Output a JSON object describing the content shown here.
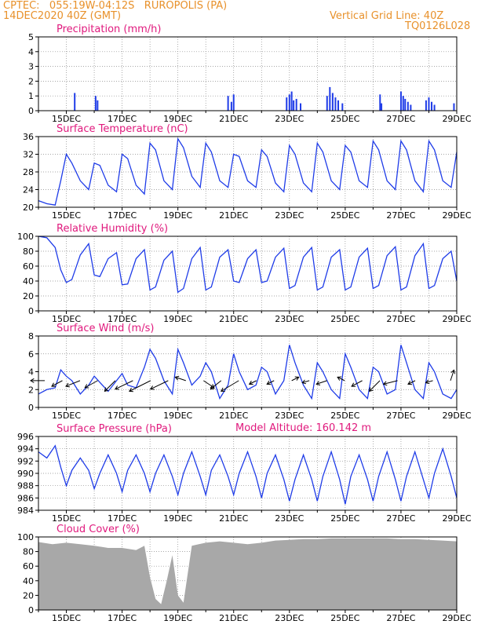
{
  "header": {
    "location_line": "CPTEC:   055:19W-04:12S   RUROPOLIS (PA)",
    "date_line": "14DEC2020 40Z (GMT)",
    "grid_line": "Vertical Grid Line: 40Z",
    "code": "TQ0126L028"
  },
  "colors": {
    "header": "#e8912b",
    "title": "#e0197d",
    "line": "#1f3ce8",
    "bar": "#1f3ce8",
    "cloud": "#a8a8a8",
    "axis": "#000000"
  },
  "x_tick_labels": [
    "15DEC",
    "17DEC",
    "19DEC",
    "21DEC",
    "23DEC",
    "25DEC",
    "27DEC",
    "29DEC"
  ],
  "model_altitude": "Model Altitude: 160.142 m",
  "chart_data": [
    {
      "type": "bar",
      "title": "Precipitation (mm/h)",
      "x_range_days": [
        14.0,
        29.0
      ],
      "ylim": [
        0,
        5
      ],
      "y_ticks": [
        0,
        1,
        2,
        3,
        4,
        5
      ],
      "grid": true,
      "x": [
        15.3,
        16.05,
        16.12,
        20.8,
        20.92,
        21.0,
        22.9,
        23.0,
        23.08,
        23.15,
        23.25,
        23.4,
        24.35,
        24.45,
        24.55,
        24.65,
        24.75,
        24.9,
        26.25,
        26.3,
        27.0,
        27.08,
        27.15,
        27.25,
        27.35,
        27.9,
        28.0,
        28.1,
        28.2,
        28.9
      ],
      "values": [
        1.2,
        1.0,
        0.7,
        1.0,
        0.6,
        1.1,
        0.9,
        1.1,
        1.3,
        0.7,
        0.8,
        0.5,
        1.0,
        1.6,
        1.2,
        0.9,
        0.7,
        0.5,
        1.1,
        0.5,
        1.3,
        1.0,
        0.8,
        0.6,
        0.4,
        0.7,
        0.9,
        0.6,
        0.4,
        0.5
      ]
    },
    {
      "type": "line",
      "title": "Surface Temperature (nC)",
      "x_range_days": [
        14.0,
        29.0
      ],
      "ylim": [
        20,
        36
      ],
      "y_ticks": [
        20,
        24,
        28,
        32,
        36
      ],
      "grid": true,
      "x": [
        14.0,
        14.3,
        14.6,
        14.8,
        15.0,
        15.2,
        15.5,
        15.8,
        16.0,
        16.2,
        16.5,
        16.8,
        17.0,
        17.2,
        17.5,
        17.8,
        18.0,
        18.2,
        18.5,
        18.8,
        19.0,
        19.2,
        19.5,
        19.8,
        20.0,
        20.2,
        20.5,
        20.8,
        21.0,
        21.2,
        21.5,
        21.8,
        22.0,
        22.2,
        22.5,
        22.8,
        23.0,
        23.2,
        23.5,
        23.8,
        24.0,
        24.2,
        24.5,
        24.8,
        25.0,
        25.2,
        25.5,
        25.8,
        26.0,
        26.2,
        26.5,
        26.8,
        27.0,
        27.2,
        27.5,
        27.8,
        28.0,
        28.2,
        28.5,
        28.8,
        29.0
      ],
      "values": [
        21.5,
        20.8,
        20.5,
        26.0,
        32.0,
        30.0,
        26.0,
        24.0,
        30.0,
        29.5,
        25.0,
        23.5,
        32.0,
        31.0,
        25.0,
        23.0,
        34.5,
        33.0,
        26.0,
        24.0,
        35.5,
        33.5,
        27.0,
        24.5,
        34.5,
        32.5,
        26.0,
        24.5,
        32.0,
        31.5,
        26.0,
        24.5,
        33.0,
        31.5,
        25.5,
        23.5,
        34.0,
        32.0,
        25.5,
        23.5,
        34.5,
        32.5,
        26.0,
        24.0,
        34.0,
        32.5,
        26.0,
        24.5,
        35.0,
        33.0,
        26.0,
        24.0,
        35.0,
        33.0,
        26.0,
        23.5,
        35.0,
        33.0,
        26.0,
        24.5,
        32.5
      ]
    },
    {
      "type": "line",
      "title": "Relative Humidity (%)",
      "x_range_days": [
        14.0,
        29.0
      ],
      "ylim": [
        0,
        100
      ],
      "y_ticks": [
        0,
        20,
        40,
        60,
        80,
        100
      ],
      "grid": true,
      "x": [
        14.0,
        14.3,
        14.6,
        14.8,
        15.0,
        15.2,
        15.5,
        15.8,
        16.0,
        16.2,
        16.5,
        16.8,
        17.0,
        17.2,
        17.5,
        17.8,
        18.0,
        18.2,
        18.5,
        18.8,
        19.0,
        19.2,
        19.5,
        19.8,
        20.0,
        20.2,
        20.5,
        20.8,
        21.0,
        21.2,
        21.5,
        21.8,
        22.0,
        22.2,
        22.5,
        22.8,
        23.0,
        23.2,
        23.5,
        23.8,
        24.0,
        24.2,
        24.5,
        24.8,
        25.0,
        25.2,
        25.5,
        25.8,
        26.0,
        26.2,
        26.5,
        26.8,
        27.0,
        27.2,
        27.5,
        27.8,
        28.0,
        28.2,
        28.5,
        28.8,
        29.0
      ],
      "values": [
        100,
        98,
        85,
        55,
        38,
        42,
        75,
        90,
        48,
        46,
        70,
        78,
        35,
        36,
        70,
        82,
        28,
        32,
        68,
        80,
        25,
        30,
        70,
        85,
        28,
        32,
        72,
        82,
        40,
        38,
        70,
        82,
        38,
        40,
        72,
        84,
        30,
        34,
        72,
        85,
        28,
        32,
        72,
        82,
        28,
        32,
        72,
        84,
        30,
        34,
        74,
        86,
        28,
        32,
        74,
        90,
        30,
        34,
        70,
        80,
        40
      ]
    },
    {
      "type": "line",
      "title": "Surface Wind (m/s)",
      "x_range_days": [
        14.0,
        29.0
      ],
      "ylim": [
        0,
        8
      ],
      "y_ticks": [
        0,
        2,
        4,
        6,
        8
      ],
      "grid": true,
      "x": [
        14.0,
        14.3,
        14.6,
        14.8,
        15.0,
        15.2,
        15.5,
        15.8,
        16.0,
        16.2,
        16.5,
        16.8,
        17.0,
        17.2,
        17.5,
        17.8,
        18.0,
        18.2,
        18.5,
        18.8,
        19.0,
        19.2,
        19.5,
        19.8,
        20.0,
        20.2,
        20.5,
        20.8,
        21.0,
        21.2,
        21.5,
        21.8,
        22.0,
        22.2,
        22.5,
        22.8,
        23.0,
        23.2,
        23.5,
        23.8,
        24.0,
        24.2,
        24.5,
        24.8,
        25.0,
        25.2,
        25.5,
        25.8,
        26.0,
        26.2,
        26.5,
        26.8,
        27.0,
        27.2,
        27.5,
        27.8,
        28.0,
        28.2,
        28.5,
        28.8,
        29.0
      ],
      "values": [
        1.5,
        2.0,
        2.2,
        4.2,
        3.5,
        3.0,
        1.5,
        2.5,
        3.5,
        2.8,
        1.8,
        3.0,
        3.8,
        2.5,
        2.2,
        4.5,
        6.5,
        5.5,
        3.0,
        1.5,
        6.5,
        5.0,
        2.5,
        3.5,
        5.0,
        4.0,
        1.0,
        2.5,
        6.0,
        4.0,
        2.0,
        2.5,
        4.5,
        4.0,
        1.5,
        3.0,
        7.0,
        5.0,
        2.5,
        1.0,
        5.0,
        4.0,
        2.0,
        1.0,
        6.0,
        4.5,
        2.0,
        1.0,
        4.5,
        4.0,
        1.5,
        2.0,
        7.0,
        5.0,
        2.0,
        1.0,
        5.0,
        4.0,
        1.5,
        1.0,
        2.0
      ],
      "arrows_u": [
        -2.0,
        -1.5,
        -2.0,
        -1.8,
        -1.5,
        -2.5,
        -3.0,
        -2.5,
        -1.5,
        1.5,
        -1.5,
        -2.5,
        -1.0,
        -1.0,
        1.0,
        -1.0,
        -1.5,
        -1.0,
        -1.5,
        -1.5,
        -2.0,
        -1.0,
        -1.0,
        0.5
      ],
      "arrows_v": [
        0.0,
        -0.8,
        -0.8,
        -1.0,
        -1.5,
        -1.2,
        -1.5,
        -1.2,
        0.5,
        -1.0,
        -1.2,
        -1.5,
        -0.5,
        -0.5,
        0.5,
        -0.3,
        -0.5,
        0.5,
        -0.8,
        -1.5,
        -0.5,
        -0.5,
        -0.3,
        1.5
      ]
    },
    {
      "type": "line",
      "title": "Surface Pressure (hPa)",
      "x_range_days": [
        14.0,
        29.0
      ],
      "ylim": [
        984,
        996
      ],
      "y_ticks": [
        984,
        986,
        988,
        990,
        992,
        994,
        996
      ],
      "grid": true,
      "x": [
        14.0,
        14.3,
        14.6,
        14.8,
        15.0,
        15.2,
        15.5,
        15.8,
        16.0,
        16.2,
        16.5,
        16.8,
        17.0,
        17.2,
        17.5,
        17.8,
        18.0,
        18.2,
        18.5,
        18.8,
        19.0,
        19.2,
        19.5,
        19.8,
        20.0,
        20.2,
        20.5,
        20.8,
        21.0,
        21.2,
        21.5,
        21.8,
        22.0,
        22.2,
        22.5,
        22.8,
        23.0,
        23.2,
        23.5,
        23.8,
        24.0,
        24.2,
        24.5,
        24.8,
        25.0,
        25.2,
        25.5,
        25.8,
        26.0,
        26.2,
        26.5,
        26.8,
        27.0,
        27.2,
        27.5,
        27.8,
        28.0,
        28.2,
        28.5,
        28.8,
        29.0
      ],
      "values": [
        993.5,
        992.5,
        994.5,
        991.0,
        988.0,
        990.5,
        992.5,
        990.5,
        987.5,
        990.0,
        993.0,
        990.0,
        987.0,
        990.5,
        993.0,
        990.0,
        987.0,
        990.0,
        993.0,
        989.5,
        986.5,
        990.0,
        993.5,
        989.5,
        986.5,
        990.5,
        993.0,
        989.5,
        986.5,
        990.0,
        993.5,
        989.5,
        986.0,
        990.0,
        993.0,
        989.0,
        985.5,
        989.0,
        993.0,
        989.0,
        985.5,
        989.5,
        993.5,
        989.0,
        985.0,
        989.5,
        993.0,
        989.0,
        985.5,
        989.5,
        993.5,
        989.0,
        985.5,
        989.5,
        993.5,
        989.0,
        986.0,
        990.0,
        994.0,
        989.5,
        986.0
      ]
    },
    {
      "type": "area",
      "title": "Cloud Cover (%)",
      "x_range_days": [
        14.0,
        29.0
      ],
      "ylim": [
        0,
        100
      ],
      "y_ticks": [
        0,
        20,
        40,
        60,
        80,
        100
      ],
      "grid": true,
      "x": [
        14.0,
        14.5,
        15.0,
        15.5,
        16.0,
        16.5,
        17.0,
        17.5,
        17.8,
        18.0,
        18.2,
        18.4,
        18.6,
        18.8,
        19.0,
        19.2,
        19.5,
        20.0,
        20.5,
        21.0,
        21.5,
        22.0,
        22.5,
        23.0,
        23.5,
        24.0,
        24.5,
        25.0,
        25.5,
        26.0,
        26.5,
        27.0,
        27.5,
        28.0,
        28.5,
        29.0
      ],
      "values": [
        93,
        90,
        92,
        90,
        88,
        85,
        85,
        82,
        88,
        45,
        15,
        8,
        40,
        75,
        20,
        10,
        88,
        92,
        94,
        92,
        90,
        92,
        95,
        96,
        97,
        97,
        98,
        98,
        98,
        98,
        98,
        97,
        97,
        96,
        95,
        94
      ]
    }
  ]
}
